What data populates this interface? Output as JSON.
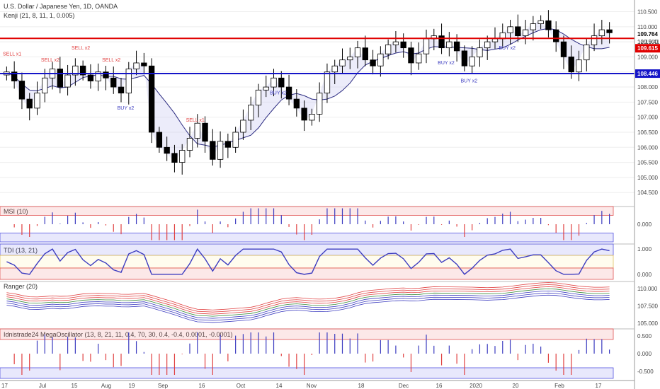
{
  "main": {
    "title": "U.S. Dollar / Japanese Yen, 1D, OANDA",
    "indicator": "Kenji (21, 8, 11, 1, 0.005)",
    "y_ticks": [
      "110.500",
      "110.000",
      "109.500",
      "109.000",
      "108.500",
      "108.000",
      "107.500",
      "107.000",
      "106.500",
      "106.000",
      "105.500",
      "105.000",
      "104.500"
    ],
    "current_price": "109.764",
    "clock": "12:19:41",
    "red_level_label": "109.615",
    "blue_level_label": "108.446",
    "colors": {
      "up": "#ffffff",
      "down": "#000000",
      "red_line": "#e00000",
      "blue_line": "#1414c8",
      "sell": "#e04040",
      "buy": "#3c3cc0"
    }
  },
  "signals": [
    {
      "text": "SELL x1",
      "type": "sell"
    },
    {
      "text": "SELL x2",
      "type": "sell"
    },
    {
      "text": "SELL x2",
      "type": "sell"
    },
    {
      "text": "SELL x2",
      "type": "sell"
    },
    {
      "text": "BUY x2",
      "type": "buy"
    },
    {
      "text": "SELL x1",
      "type": "sell"
    },
    {
      "text": "BUY x2",
      "type": "buy"
    },
    {
      "text": "BUY x2",
      "type": "buy"
    },
    {
      "text": "BUY x2",
      "type": "buy"
    },
    {
      "text": "BUY x2",
      "type": "buy"
    }
  ],
  "msi": {
    "title": "MSI (10)",
    "ticks": [
      "0.000"
    ]
  },
  "tdi": {
    "title": "TDI (13, 21)",
    "ticks": [
      "1.000",
      "0.000"
    ]
  },
  "ranger": {
    "title": "Ranger (20)",
    "ticks": [
      "110.000",
      "107.500",
      "105.000"
    ]
  },
  "mega": {
    "title": "Idnistrade24 MegaOscillator (13, 8, 21, 11, 0.4, 70, 30, 0.4, -0.4, 0.0001, -0.0001)",
    "ticks": [
      "0.500",
      "0.000",
      "-0.500"
    ]
  },
  "x_ticks": [
    "17",
    "Jul",
    "15",
    "Aug",
    "19",
    "Sep",
    "16",
    "Oct",
    "14",
    "Nov",
    "18",
    "Dec",
    "16",
    "2020",
    "20",
    "Feb",
    "17"
  ],
  "chart_data": {
    "type": "candlestick",
    "title": "U.S. Dollar / Japanese Yen, 1D, OANDA",
    "ylim": [
      104.2,
      110.7
    ],
    "horizontal_levels": [
      109.615,
      108.446
    ],
    "last_price": 109.764,
    "closes_approx": [
      108.5,
      108.2,
      107.6,
      107.3,
      107.8,
      108.3,
      108.6,
      108.0,
      108.4,
      108.7,
      108.4,
      108.2,
      108.5,
      108.3,
      108.0,
      107.8,
      108.6,
      108.8,
      108.7,
      106.5,
      106.0,
      105.8,
      105.5,
      105.9,
      106.3,
      106.8,
      106.2,
      105.6,
      106.2,
      106.0,
      106.5,
      106.9,
      107.4,
      107.9,
      108.0,
      108.3,
      108.0,
      107.6,
      107.3,
      106.9,
      107.1,
      107.8,
      108.5,
      108.7,
      108.9,
      109.0,
      109.3,
      108.9,
      108.7,
      109.1,
      109.4,
      109.5,
      109.3,
      108.8,
      109.1,
      109.6,
      109.7,
      109.3,
      109.5,
      109.2,
      108.7,
      109.0,
      109.3,
      109.5,
      109.6,
      109.8,
      110.0,
      109.7,
      109.9,
      110.1,
      110.2,
      109.9,
      109.5,
      109.0,
      108.5,
      108.9,
      109.4,
      109.7,
      109.9,
      109.8
    ],
    "msi": {
      "ylim": [
        -1,
        1
      ]
    },
    "tdi": {
      "ylim": [
        -0.2,
        1.2
      ]
    },
    "ranger": {
      "ylim": [
        104.5,
        111
      ]
    },
    "mega": {
      "ylim": [
        -0.7,
        0.7
      ]
    }
  }
}
